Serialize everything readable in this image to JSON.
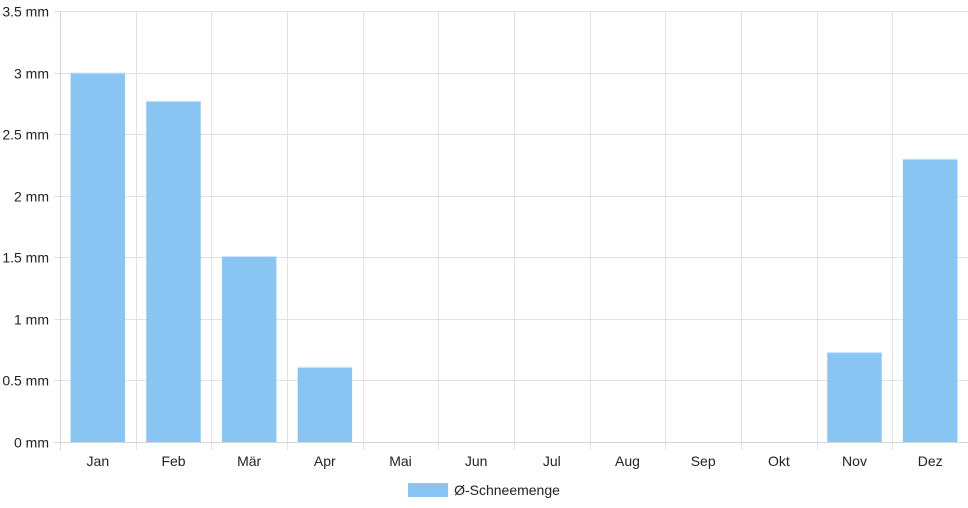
{
  "chart_data": {
    "type": "bar",
    "categories": [
      "Jan",
      "Feb",
      "Mär",
      "Apr",
      "Mai",
      "Jun",
      "Jul",
      "Aug",
      "Sep",
      "Okt",
      "Nov",
      "Dez"
    ],
    "series": [
      {
        "name": "Ø-Schneemenge",
        "values": [
          3.0,
          2.77,
          1.51,
          0.61,
          0,
          0,
          0,
          0,
          0,
          0,
          0.73,
          2.3
        ]
      }
    ],
    "unit": "mm",
    "y_ticks": [
      "0 mm",
      "0.5 mm",
      "1 mm",
      "1.5 mm",
      "2 mm",
      "2.5 mm",
      "3 mm",
      "3.5 mm"
    ],
    "ylim": [
      0,
      3.5
    ],
    "grid": true,
    "legend_position": "bottom",
    "bar_color": "#89c5f2",
    "grid_color": "#e2e2e2",
    "axis_color": "#d4d4d4"
  }
}
